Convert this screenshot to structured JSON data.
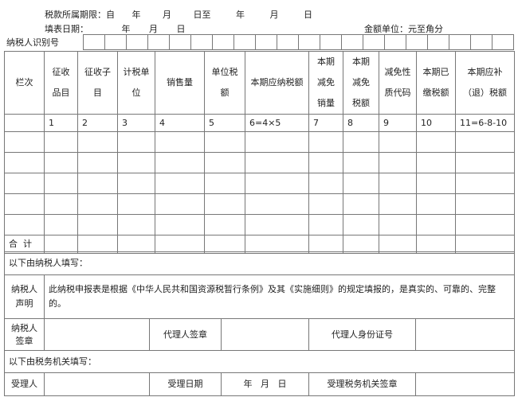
{
  "header": {
    "period_label": "税款所属期限：自",
    "period_parts": [
      "年",
      "月",
      "日至",
      "年",
      "月",
      "日"
    ],
    "fill_date_label": "填表日期：",
    "fill_date_parts": [
      "年",
      "月",
      "日"
    ],
    "unit": "金额单位：元至角分",
    "taxpayer_id_label": "纳税人识别号"
  },
  "table": {
    "headers": [
      "栏次",
      "征收品目",
      "征收子目",
      "计税单位",
      "销售量",
      "单位税额",
      "本期应纳税额",
      "本期减免销量",
      "本期减免税额",
      "减免性质代码",
      "本期已缴税额",
      "本期应补（退）税额"
    ],
    "index_row": [
      "",
      "1",
      "2",
      "3",
      "4",
      "5",
      "6=4×5",
      "7",
      "8",
      "9",
      "10",
      "11=6-8-10"
    ],
    "total_label": "合  计"
  },
  "taxpayer": {
    "section_label": "以下由纳税人填写：",
    "declaration_label": "纳税人声明",
    "declaration_text": "此纳税申报表是根据《中华人民共和国资源税暂行条例》及其《实施细则》的规定填报的，是真实的、可靠的、完整的。",
    "signature_label": "纳税人签章",
    "agent_signature_label": "代理人签章",
    "agent_id_label": "代理人身份证号"
  },
  "authority": {
    "section_label": "以下由税务机关填写：",
    "receiver_label": "受理人",
    "receive_date_label": "受理日期",
    "receive_date_value": "年   月   日",
    "authority_seal_label": "受理税务机关签章"
  }
}
